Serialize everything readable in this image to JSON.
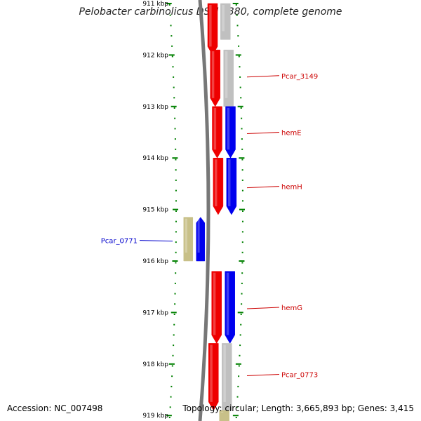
{
  "title": "Pelobacter carbinolicus DSM 2380, complete genome",
  "footer": {
    "accession": "Accession: NC_007498",
    "summary": "Topology: circular; Length: 3,665,893 bp; Genes: 3,415"
  },
  "colors": {
    "forward_gene": "#ee0000",
    "reverse_gene": "#0000ee",
    "other_feature": "#c0c0c0",
    "olive_feature": "#c8c088",
    "tick": "#008000",
    "backbone": "#777777",
    "label_red": "#cc0000",
    "label_blue": "#0000cc"
  },
  "chart_data": {
    "type": "genome-map",
    "axis": {
      "unit": "kbp",
      "range_kbp": [
        911,
        919
      ],
      "ticks": [
        {
          "kbp": 911,
          "label": "911 kbp"
        },
        {
          "kbp": 912,
          "label": "912 kbp"
        },
        {
          "kbp": 913,
          "label": "913 kbp"
        },
        {
          "kbp": 914,
          "label": "914 kbp"
        },
        {
          "kbp": 915,
          "label": "915 kbp"
        },
        {
          "kbp": 916,
          "label": "916 kbp"
        },
        {
          "kbp": 917,
          "label": "917 kbp"
        },
        {
          "kbp": 918,
          "label": "918 kbp"
        },
        {
          "kbp": 919,
          "label": "919 kbp"
        }
      ]
    },
    "features": [
      {
        "track": "inner",
        "start": 911.0,
        "end": 912.0,
        "strand": "+",
        "color": "forward_gene"
      },
      {
        "track": "inner",
        "start": 911.9,
        "end": 913.0,
        "strand": "+",
        "color": "forward_gene"
      },
      {
        "track": "inner",
        "start": 913.0,
        "end": 914.0,
        "strand": "+",
        "color": "forward_gene"
      },
      {
        "track": "inner",
        "start": 914.0,
        "end": 915.1,
        "strand": "+",
        "color": "forward_gene"
      },
      {
        "track": "inner",
        "start": 916.2,
        "end": 917.6,
        "strand": "+",
        "color": "forward_gene"
      },
      {
        "track": "inner",
        "start": 917.6,
        "end": 918.9,
        "strand": "+",
        "color": "forward_gene"
      },
      {
        "track": "outer",
        "start": 911.0,
        "end": 911.7,
        "strand": "",
        "color": "other_feature"
      },
      {
        "track": "outer",
        "start": 911.9,
        "end": 913.0,
        "strand": "",
        "color": "other_feature"
      },
      {
        "track": "outer",
        "start": 913.0,
        "end": 914.0,
        "strand": "+",
        "color": "reverse_gene"
      },
      {
        "track": "outer",
        "start": 914.0,
        "end": 915.1,
        "strand": "+",
        "color": "reverse_gene"
      },
      {
        "track": "outer",
        "start": 916.2,
        "end": 917.6,
        "strand": "+",
        "color": "reverse_gene"
      },
      {
        "track": "outer",
        "start": 917.6,
        "end": 918.9,
        "strand": "",
        "color": "other_feature"
      },
      {
        "track": "outer",
        "start": 918.9,
        "end": 919.2,
        "strand": "",
        "color": "olive_feature"
      },
      {
        "track": "left-outer",
        "start": 915.15,
        "end": 916.0,
        "strand": "",
        "color": "olive_feature"
      },
      {
        "track": "left-inner",
        "start": 915.15,
        "end": 916.0,
        "strand": "-",
        "color": "reverse_gene"
      }
    ],
    "labels": [
      {
        "text": "Pcar_3149",
        "kbp": 912.4,
        "side": "right",
        "color": "label_red"
      },
      {
        "text": "hemE",
        "kbp": 913.5,
        "side": "right",
        "color": "label_red"
      },
      {
        "text": "hemH",
        "kbp": 914.55,
        "side": "right",
        "color": "label_red"
      },
      {
        "text": "Pcar_0771",
        "kbp": 915.6,
        "side": "left",
        "color": "label_blue"
      },
      {
        "text": "hemG",
        "kbp": 916.9,
        "side": "right",
        "color": "label_red"
      },
      {
        "text": "Pcar_0773",
        "kbp": 918.2,
        "side": "right",
        "color": "label_red"
      }
    ]
  }
}
